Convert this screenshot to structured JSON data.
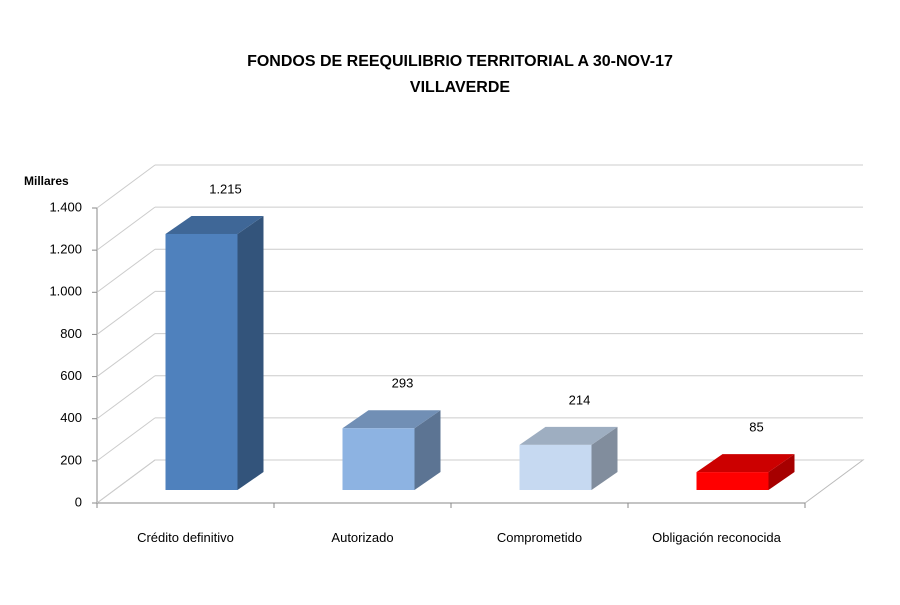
{
  "chart_data": {
    "type": "bar3d",
    "title": "FONDOS DE REEQUILIBRIO TERRITORIAL A 30-NOV-17",
    "subtitle": "VILLAVERDE",
    "y_axis_label": "Millares",
    "categories": [
      "Crédito definitivo",
      "Autorizado",
      "Comprometido",
      "Obligación reconocida"
    ],
    "values": [
      1215,
      293,
      214,
      85
    ],
    "value_labels": [
      "1.215",
      "293",
      "214",
      "85"
    ],
    "colors": [
      "#4f81bd",
      "#8db3e2",
      "#c6d9f1",
      "#ff0000"
    ],
    "ylim": [
      0,
      1400
    ],
    "yticks": [
      0,
      200,
      400,
      600,
      800,
      {
        "value": 1000,
        "label": "1.000"
      },
      {
        "value": 1200,
        "label": "1.200"
      },
      {
        "value": 1400,
        "label": "1.400"
      }
    ],
    "grid": true
  }
}
